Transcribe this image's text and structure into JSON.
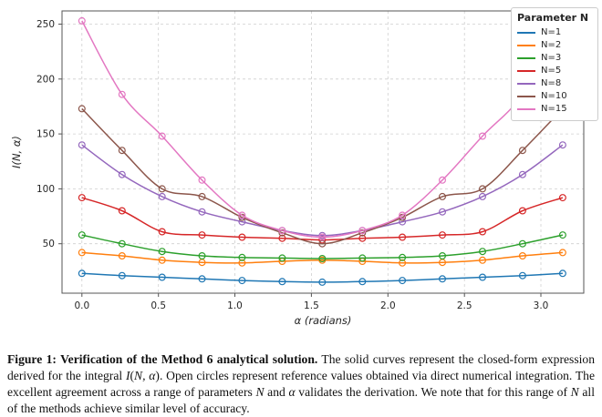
{
  "chart_data": {
    "type": "line",
    "title": "",
    "xlabel": "α (radians)",
    "ylabel": "I(N, α)",
    "xlim": [
      -0.13,
      3.28
    ],
    "ylim": [
      5,
      262
    ],
    "xticks": [
      0.0,
      0.5,
      1.0,
      1.5,
      2.0,
      2.5,
      3.0
    ],
    "xtick_labels": [
      "0.0",
      "0.5",
      "1.0",
      "1.5",
      "2.0",
      "2.5",
      "3.0"
    ],
    "yticks": [
      50,
      100,
      150,
      200,
      250
    ],
    "ytick_labels": [
      "50",
      "100",
      "150",
      "200",
      "250"
    ],
    "grid": true,
    "grid_style": "dashed",
    "legend_title": "Parameter N",
    "legend_position": "upper right outside",
    "marker": "open-circle",
    "x": [
      0.0,
      0.262,
      0.524,
      0.785,
      1.047,
      1.309,
      1.571,
      1.833,
      2.094,
      2.356,
      2.618,
      2.88,
      3.142
    ],
    "series": [
      {
        "name": "N=1",
        "color": "#1f77b4",
        "values": [
          23,
          21,
          19.5,
          18,
          16.5,
          15.5,
          15,
          15.5,
          16.5,
          18,
          19.5,
          21,
          23
        ]
      },
      {
        "name": "N=2",
        "color": "#ff7f0e",
        "values": [
          42,
          39,
          35,
          33,
          32.5,
          34,
          35,
          34,
          32.5,
          33,
          35,
          39,
          42
        ]
      },
      {
        "name": "N=3",
        "color": "#2ca02c",
        "values": [
          58,
          50,
          43,
          39,
          37.5,
          37,
          36.5,
          37,
          37.5,
          39,
          43,
          50,
          58
        ]
      },
      {
        "name": "N=5",
        "color": "#d62728",
        "values": [
          92,
          80,
          61,
          58,
          56,
          55,
          53.5,
          55,
          56,
          58,
          61,
          80,
          92
        ]
      },
      {
        "name": "N=8",
        "color": "#9467bd",
        "values": [
          140,
          113,
          93,
          79,
          70,
          62,
          57.5,
          62,
          70,
          79,
          93,
          113,
          140
        ]
      },
      {
        "name": "N=10",
        "color": "#8c564b",
        "values": [
          173,
          135,
          100,
          93,
          74,
          60,
          50,
          60,
          74,
          93,
          100,
          135,
          173
        ]
      },
      {
        "name": "N=15",
        "color": "#e377c2",
        "values": [
          253,
          186,
          148,
          108,
          76,
          62,
          56,
          62,
          76,
          108,
          148,
          186,
          253
        ]
      }
    ]
  },
  "figure": {
    "caption_segments": [
      {
        "text": "Figure 1: ",
        "style": "b"
      },
      {
        "text": "Verification of the Method 6 analytical solution.",
        "style": "b"
      },
      {
        "text": " The solid curves represent the closed-form expression derived for the integral ",
        "style": ""
      },
      {
        "text": "I",
        "style": "i"
      },
      {
        "text": "(",
        "style": ""
      },
      {
        "text": "N, α",
        "style": "i"
      },
      {
        "text": ")",
        "style": ""
      },
      {
        "text": ". Open circles represent reference values obtained via direct numerical integration. The excellent agreement across a range of parameters ",
        "style": ""
      },
      {
        "text": "N",
        "style": "i"
      },
      {
        "text": " and ",
        "style": ""
      },
      {
        "text": "α",
        "style": "i"
      },
      {
        "text": " validates the derivation. We note that for this range of ",
        "style": ""
      },
      {
        "text": "N",
        "style": "i"
      },
      {
        "text": " all of the methods achieve similar level of accuracy.",
        "style": ""
      }
    ]
  }
}
